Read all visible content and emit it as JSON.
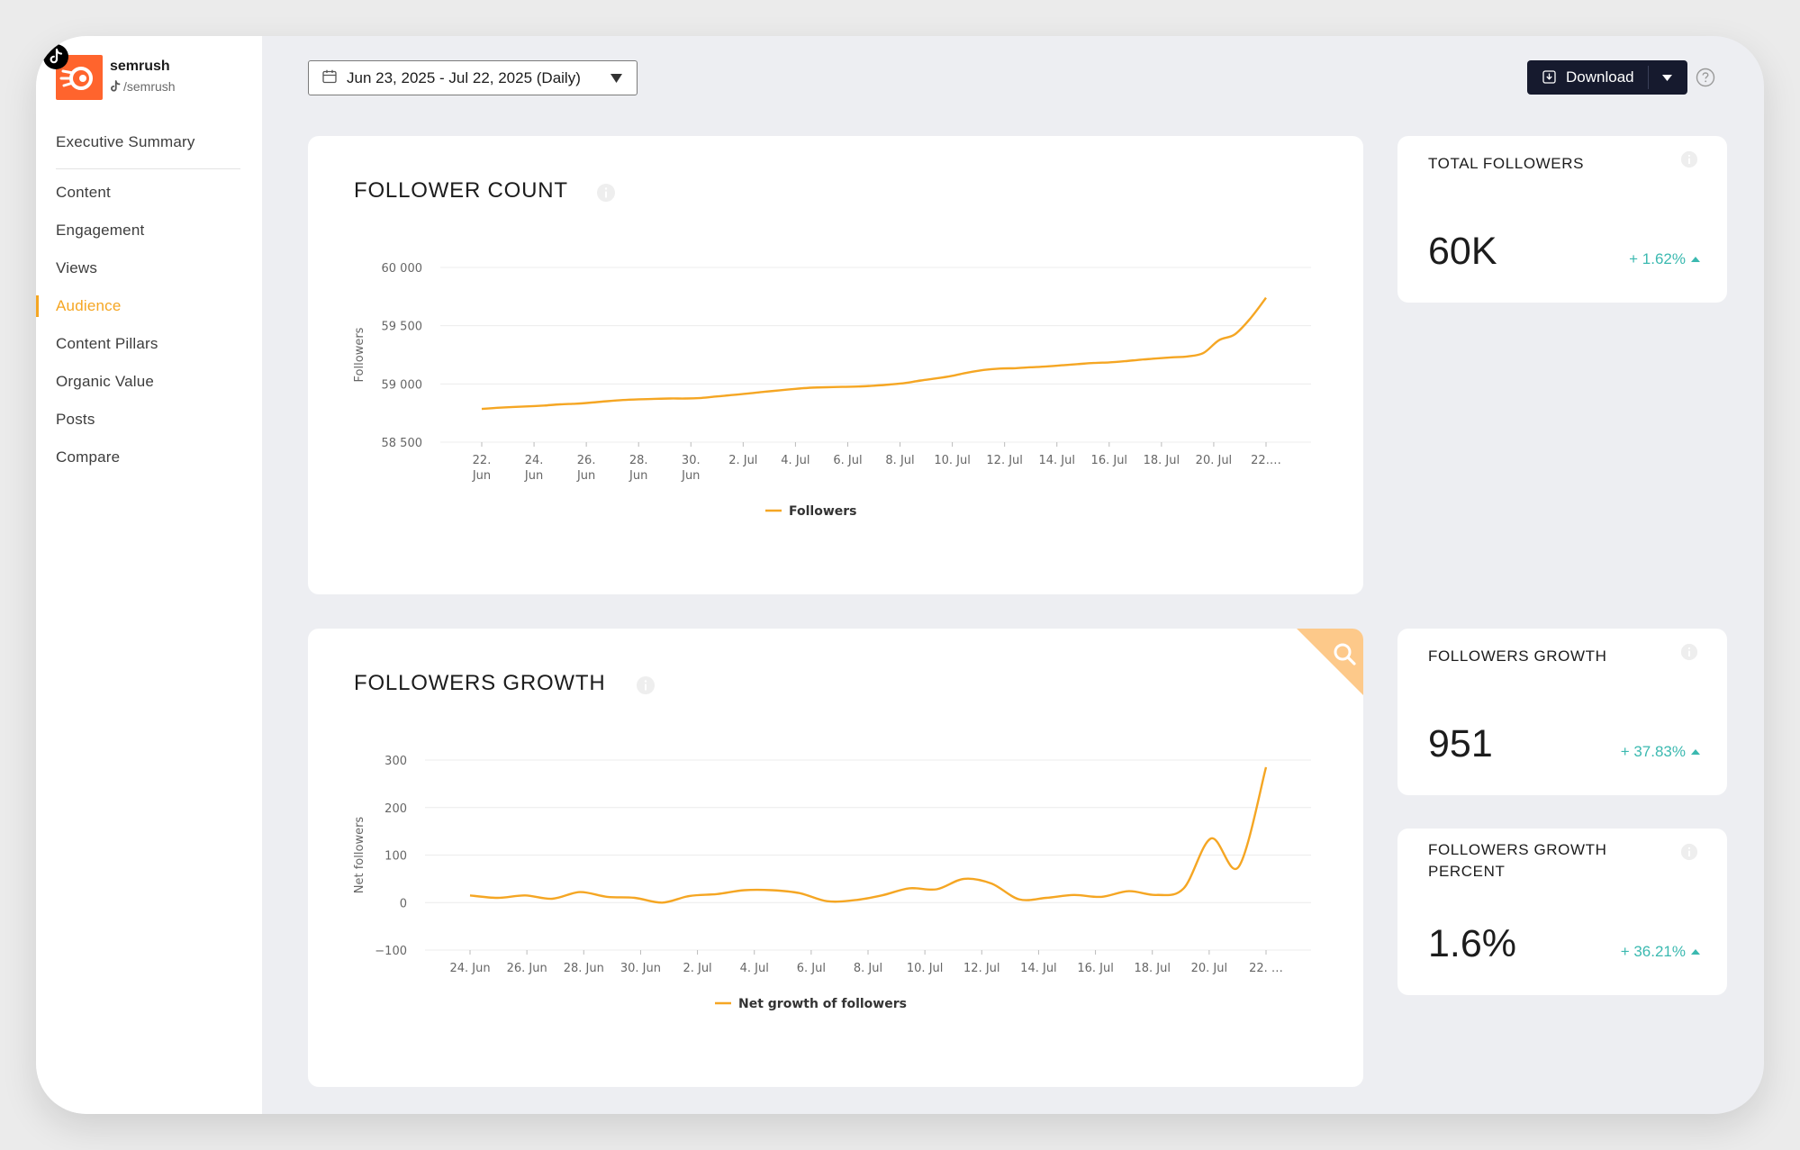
{
  "brand": {
    "name": "semrush",
    "handle": "/semrush",
    "logo_color": "#ff642d",
    "platform_icon": "tiktok-icon"
  },
  "sidebar": {
    "items": [
      {
        "label": "Executive Summary",
        "active": false
      },
      {
        "label": "Content",
        "active": false
      },
      {
        "label": "Engagement",
        "active": false
      },
      {
        "label": "Views",
        "active": false
      },
      {
        "label": "Audience",
        "active": true
      },
      {
        "label": "Content Pillars",
        "active": false
      },
      {
        "label": "Organic Value",
        "active": false
      },
      {
        "label": "Posts",
        "active": false
      },
      {
        "label": "Compare",
        "active": false
      }
    ]
  },
  "toolbar": {
    "date_range": "Jun 23, 2025 - Jul 22, 2025 (Daily)",
    "download_label": "Download"
  },
  "kpis": {
    "total_followers": {
      "title": "TOTAL FOLLOWERS",
      "value": "60K",
      "change": "+ 1.62%"
    },
    "followers_growth": {
      "title": "FOLLOWERS GROWTH",
      "value": "951",
      "change": "+ 37.83%"
    },
    "followers_growth_percent": {
      "title": "FOLLOWERS GROWTH PERCENT",
      "value": "1.6%",
      "change": "+ 36.21%"
    }
  },
  "colors": {
    "accent": "#f5a623",
    "positive": "#3bb9b0",
    "button_dark": "#161a2e"
  },
  "chart_data": [
    {
      "type": "line",
      "title": "FOLLOWER COUNT",
      "ylabel": "Followers",
      "ylim": [
        58500,
        60000
      ],
      "yticks": [
        "60 000",
        "59 500",
        "59 000",
        "58 500"
      ],
      "yticks_values": [
        60000,
        59500,
        59000,
        58500
      ],
      "xticks": [
        [
          "22.",
          "Jun"
        ],
        [
          "24.",
          "Jun"
        ],
        [
          "26.",
          "Jun"
        ],
        [
          "28.",
          "Jun"
        ],
        [
          "30.",
          "Jun"
        ],
        [
          "2. Jul"
        ],
        [
          "4. Jul"
        ],
        [
          "6. Jul"
        ],
        [
          "8. Jul"
        ],
        [
          "10. Jul"
        ],
        [
          "12. Jul"
        ],
        [
          "14. Jul"
        ],
        [
          "16. Jul"
        ],
        [
          "18. Jul"
        ],
        [
          "20. Jul"
        ],
        [
          "22.…"
        ]
      ],
      "series": [
        {
          "name": "Followers",
          "color": "#f5a623",
          "values": [
            58785,
            58795,
            58802,
            58808,
            58815,
            58825,
            58830,
            58840,
            58852,
            58862,
            58868,
            58872,
            58875,
            58875,
            58880,
            58893,
            58905,
            58918,
            58932,
            58945,
            58958,
            58968,
            58972,
            58975,
            58978,
            58985,
            58995,
            59008,
            59030,
            59048,
            59070,
            59098,
            59120,
            59132,
            59135,
            59143,
            59150,
            59160,
            59170,
            59180,
            59185,
            59195,
            59208,
            59218,
            59228,
            59236,
            59265,
            59375,
            59425,
            59562,
            59740
          ]
        }
      ],
      "legend": "bottom-center",
      "grid": true
    },
    {
      "type": "line",
      "title": "FOLLOWERS GROWTH",
      "ylabel": "Net followers",
      "ylim": [
        -100,
        300
      ],
      "yticks": [
        "300",
        "200",
        "100",
        "0",
        "−100"
      ],
      "yticks_values": [
        300,
        200,
        100,
        0,
        -100
      ],
      "xticks": [
        "24. Jun",
        "26. Jun",
        "28. Jun",
        "30. Jun",
        "2. Jul",
        "4. Jul",
        "6. Jul",
        "8. Jul",
        "10. Jul",
        "12. Jul",
        "14. Jul",
        "16. Jul",
        "18. Jul",
        "20. Jul",
        "22. …"
      ],
      "series": [
        {
          "name": "Net growth of followers",
          "color": "#f5a623",
          "values": [
            15,
            10,
            15,
            8,
            22,
            12,
            10,
            0,
            14,
            18,
            26,
            26,
            20,
            3,
            5,
            15,
            30,
            28,
            50,
            40,
            7,
            10,
            16,
            12,
            24,
            16,
            30,
            135,
            75,
            285
          ]
        }
      ],
      "legend": "bottom-center",
      "grid": true
    }
  ]
}
